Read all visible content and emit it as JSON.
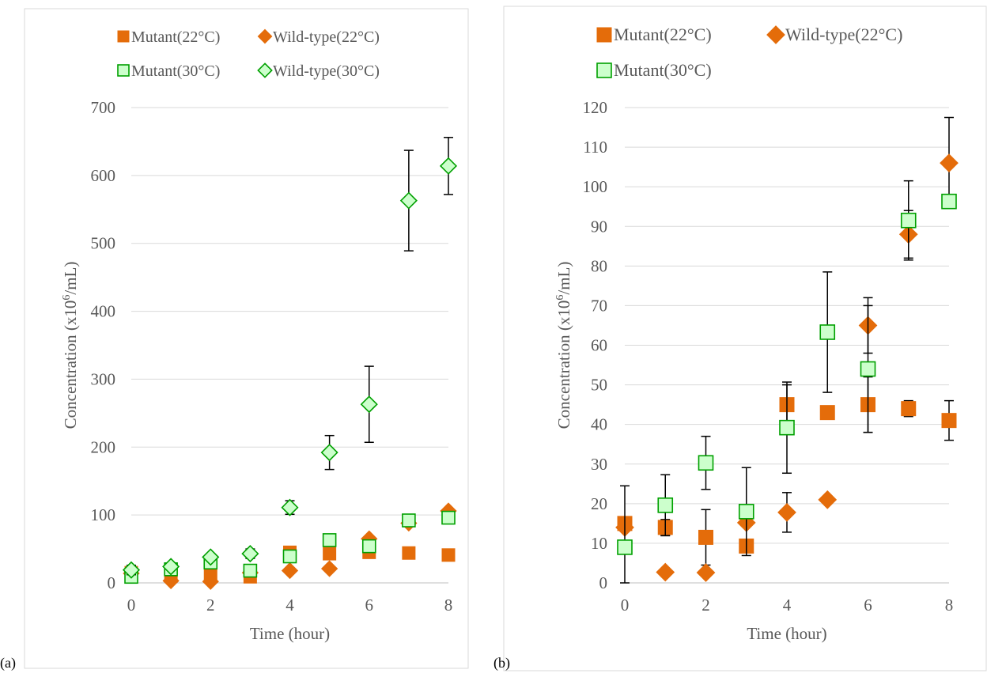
{
  "panels": [
    {
      "label": "(a)"
    },
    {
      "label": "(b)"
    }
  ],
  "colors": {
    "orange": "#E46C0A",
    "orange_dark": "#ED7D31",
    "green": "#00A000",
    "green_fill": "#CCFFCC",
    "axis": "#BFBFBF",
    "grid": "#D9D9D9",
    "text": "#595959",
    "errorbar": "#000000"
  },
  "chart_data": [
    {
      "type": "scatter",
      "panel": "(a)",
      "xlabel": "Time (hour)",
      "ylabel": "Concentration (x10⁶/mL)",
      "ylabel_parts": [
        "Concentration (x10",
        "6",
        "/mL)"
      ],
      "xlim": [
        0,
        8
      ],
      "ylim": [
        0,
        700
      ],
      "xticks": [
        0,
        2,
        4,
        6,
        8
      ],
      "yticks": [
        0,
        100,
        200,
        300,
        400,
        500,
        600,
        700
      ],
      "grid": "horizontal",
      "legend_position": "top",
      "series": [
        {
          "name": "Mutant(22°C)",
          "marker": "square-filled",
          "x": [
            0,
            1,
            2,
            3,
            4,
            5,
            6,
            7,
            8
          ],
          "y": [
            15,
            14,
            11,
            9,
            45,
            43,
            45,
            44,
            41
          ],
          "err": [
            0,
            0,
            0,
            0,
            0,
            0,
            0,
            0,
            0
          ]
        },
        {
          "name": "Wild-type(22°C)",
          "marker": "diamond-filled",
          "x": [
            0,
            1,
            2,
            3,
            4,
            5,
            6,
            7,
            8
          ],
          "y": [
            14,
            3,
            2,
            15,
            18,
            21,
            65,
            88,
            106
          ],
          "err": [
            0,
            0,
            0,
            0,
            0,
            0,
            0,
            0,
            0
          ]
        },
        {
          "name": "Mutant(30°C)",
          "marker": "square-open",
          "x": [
            0,
            1,
            2,
            3,
            4,
            5,
            6,
            7,
            8
          ],
          "y": [
            9,
            20,
            30,
            18,
            39,
            63,
            54,
            92,
            96
          ],
          "err": [
            0,
            0,
            0,
            0,
            0,
            0,
            0,
            0,
            0
          ]
        },
        {
          "name": "Wild-type(30°C)",
          "marker": "diamond-open",
          "x": [
            0,
            1,
            2,
            3,
            4,
            5,
            6,
            7,
            8
          ],
          "y": [
            19,
            24,
            38,
            43,
            111,
            192,
            263,
            563,
            614
          ],
          "err": [
            7,
            5,
            5,
            7,
            10,
            25,
            56,
            74,
            42
          ]
        }
      ]
    },
    {
      "type": "scatter",
      "panel": "(b)",
      "xlabel": "Time (hour)",
      "ylabel": "Concentration (x10⁶/mL)",
      "ylabel_parts": [
        "Concentration (x10",
        "6",
        "/mL)"
      ],
      "xlim": [
        0,
        8
      ],
      "ylim": [
        0,
        120
      ],
      "xticks": [
        0,
        2,
        4,
        6,
        8
      ],
      "yticks": [
        0,
        10,
        20,
        30,
        40,
        50,
        60,
        70,
        80,
        90,
        100,
        110,
        120
      ],
      "grid": "horizontal",
      "legend_position": "top",
      "series": [
        {
          "name": "Mutant(22°C)",
          "marker": "square-filled",
          "x": [
            0,
            1,
            2,
            3,
            4,
            5,
            6,
            7,
            8
          ],
          "y": [
            15,
            14,
            11.5,
            9.3,
            45,
            43,
            45,
            44,
            41
          ],
          "err": [
            0,
            2,
            7,
            0,
            5,
            0,
            7,
            2,
            5
          ]
        },
        {
          "name": "Wild-type(22°C)",
          "marker": "diamond-filled",
          "x": [
            0,
            1,
            2,
            3,
            4,
            5,
            6,
            7,
            8
          ],
          "y": [
            14,
            2.7,
            2.6,
            15.2,
            17.8,
            21,
            65,
            88,
            106
          ],
          "err": [
            0,
            0.5,
            0.5,
            0,
            5,
            0,
            7,
            6,
            11.5
          ]
        },
        {
          "name": "Mutant(30°C)",
          "marker": "square-open",
          "x": [
            0,
            1,
            2,
            3,
            4,
            5,
            6,
            7,
            8
          ],
          "y": [
            9,
            19.6,
            30.3,
            18,
            39.2,
            63.3,
            54,
            91.5,
            96.3
          ],
          "err": [
            15.5,
            7.7,
            6.7,
            11.1,
            11.5,
            15.2,
            16,
            10,
            0
          ]
        }
      ]
    }
  ]
}
